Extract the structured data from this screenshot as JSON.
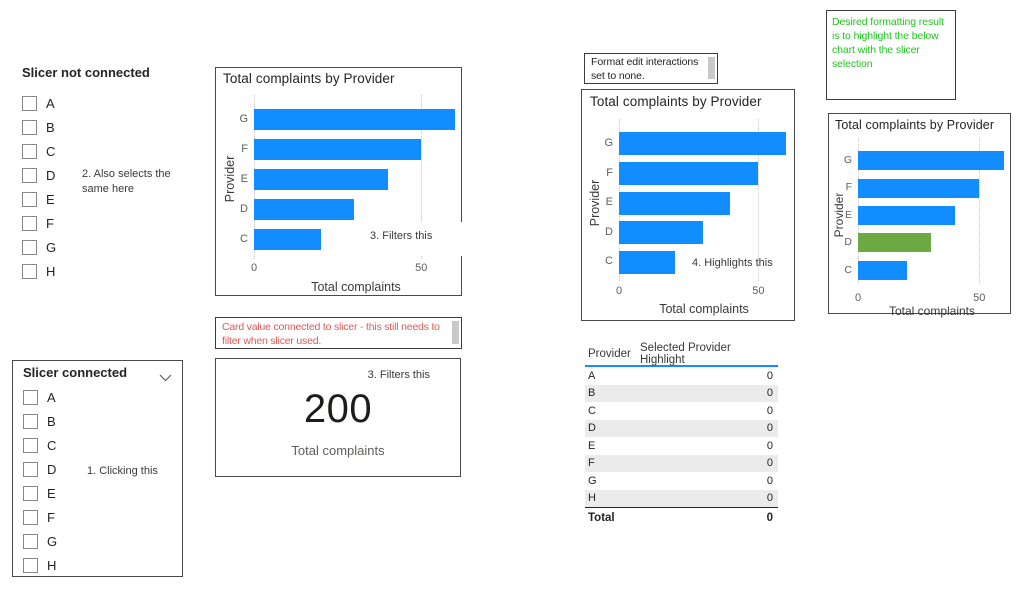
{
  "colors": {
    "bar_blue": "#118DFF",
    "bar_green": "#6DAA44",
    "table_accent": "#118DFF",
    "note_red": "#DC5B5B",
    "note_green": "#1FC71F"
  },
  "slicer_not_connected": {
    "title": "Slicer not connected",
    "options": [
      "A",
      "B",
      "C",
      "D",
      "E",
      "F",
      "G",
      "H"
    ]
  },
  "slicer_connected": {
    "title": "Slicer connected",
    "options": [
      "A",
      "B",
      "C",
      "D",
      "E",
      "F",
      "G",
      "H"
    ]
  },
  "annotations": {
    "clicking": "1. Clicking this",
    "also_selects": "2. Also selects the same here",
    "filters_chart": "3. Filters this",
    "filters_card": "3. Filters this",
    "highlights": "4. Highlights this"
  },
  "notes": {
    "edit_interactions": "Format edit interactions set to none.",
    "card_note": "Card value connected to slicer - this still needs to filter when slicer used.",
    "desired_result": "Desired formatting result is to highlight the below chart with the slicer selection"
  },
  "card": {
    "value": "200",
    "label": "Total complaints"
  },
  "table": {
    "headers": [
      "Provider",
      "Selected Provider Highlight"
    ],
    "rows": [
      {
        "provider": "A",
        "value": "0"
      },
      {
        "provider": "B",
        "value": "0"
      },
      {
        "provider": "C",
        "value": "0"
      },
      {
        "provider": "D",
        "value": "0"
      },
      {
        "provider": "E",
        "value": "0"
      },
      {
        "provider": "F",
        "value": "0"
      },
      {
        "provider": "G",
        "value": "0"
      },
      {
        "provider": "H",
        "value": "0"
      }
    ],
    "total": {
      "label": "Total",
      "value": "0"
    }
  },
  "chart_data": [
    {
      "type": "bar",
      "orientation": "horizontal",
      "title": "Total complaints by Provider",
      "categories": [
        "G",
        "F",
        "E",
        "D",
        "C"
      ],
      "values": [
        60,
        50,
        40,
        30,
        20
      ],
      "xlabel": "Total complaints",
      "ylabel": "Provider",
      "xlim": [
        0,
        61
      ],
      "xticks": [
        0,
        50
      ],
      "bar_color": "#118DFF"
    },
    {
      "type": "bar",
      "orientation": "horizontal",
      "title": "Total complaints by Provider",
      "categories": [
        "G",
        "F",
        "E",
        "D",
        "C"
      ],
      "values": [
        60,
        50,
        40,
        30,
        20
      ],
      "xlabel": "Total complaints",
      "ylabel": "Provider",
      "xlim": [
        0,
        61
      ],
      "xticks": [
        0,
        50
      ],
      "bar_color": "#118DFF"
    },
    {
      "type": "bar",
      "orientation": "horizontal",
      "title": "Total complaints by Provider",
      "categories": [
        "G",
        "F",
        "E",
        "D",
        "C"
      ],
      "values": [
        60,
        50,
        40,
        30,
        20
      ],
      "xlabel": "Total complaints",
      "ylabel": "Provider",
      "xlim": [
        0,
        61
      ],
      "xticks": [
        0,
        50
      ],
      "bar_color": "#118DFF",
      "highlight": {
        "category": "D",
        "color": "#6DAA44"
      }
    }
  ]
}
